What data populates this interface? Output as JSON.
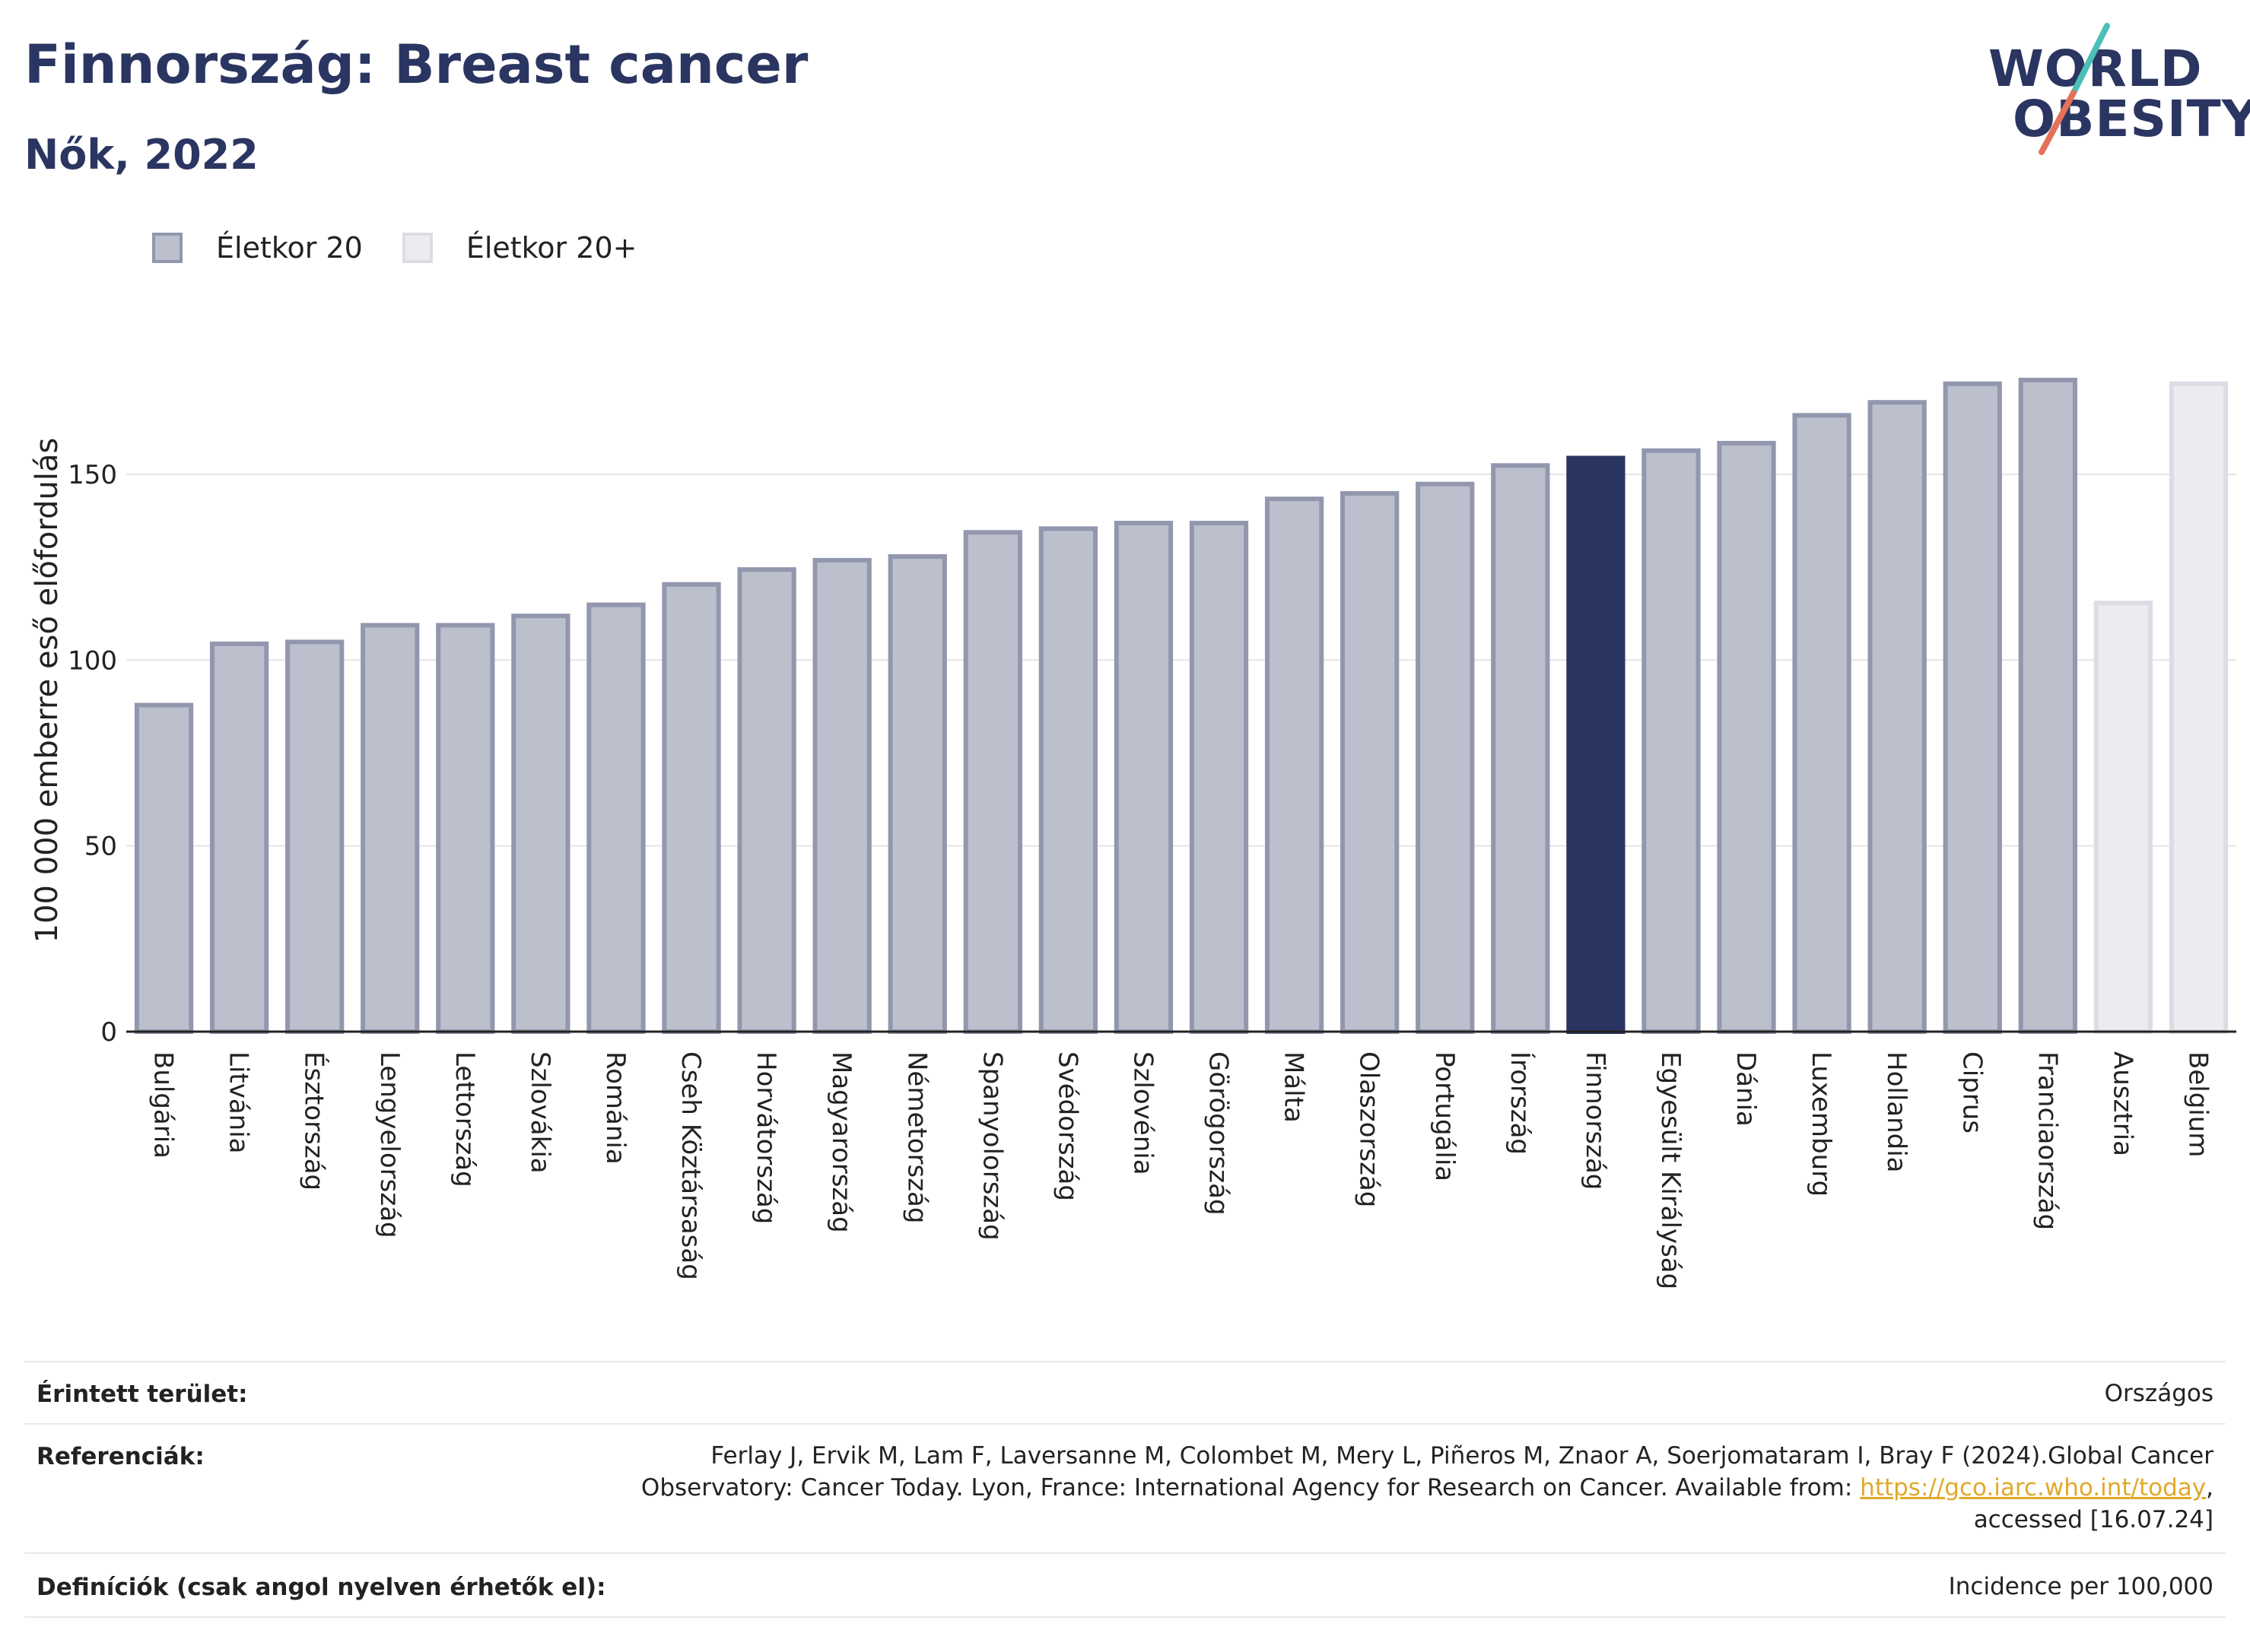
{
  "header": {
    "title": "Finnország: Breast cancer",
    "subtitle": "Nők, 2022"
  },
  "logo": {
    "line1": "WORLD",
    "line2": "OBESITY",
    "accent_colors": [
      "#4bbfb8",
      "#e4715a"
    ]
  },
  "legend": {
    "items": [
      {
        "label": "Életkor 20",
        "color": "#bcc0cc"
      },
      {
        "label": "Életkor 20+",
        "color": "#ececf0"
      }
    ]
  },
  "colors": {
    "bar_default": "#bcc0cc",
    "bar_default_border": "#9297ae",
    "bar_highlight": "#2b3561",
    "bar_alt": "#ececf0",
    "bar_alt_border": "#dcdde4",
    "grid": "#e5e5e5"
  },
  "chart_data": {
    "type": "bar",
    "title": "Finnország: Breast cancer",
    "subtitle": "Nők, 2022",
    "xlabel": "",
    "ylabel": "100 000 emberre eső előfordulás",
    "ylim": [
      0,
      185
    ],
    "yticks": [
      0,
      50,
      100,
      150
    ],
    "grid": true,
    "legend_position": "top-left",
    "highlight": "Finnország",
    "categories": [
      "Bulgária",
      "Litvánia",
      "Észtország",
      "Lengyelország",
      "Lettország",
      "Szlovákia",
      "Románia",
      "Cseh Köztársaság",
      "Horvátország",
      "Magyarország",
      "Németország",
      "Spanyolország",
      "Svédország",
      "Szlovénia",
      "Görögország",
      "Málta",
      "Olaszország",
      "Portugália",
      "Írország",
      "Finnország",
      "Egyesült Királyság",
      "Dánia",
      "Luxemburg",
      "Hollandia",
      "Ciprus",
      "Franciaország",
      "Ausztria",
      "Belgium"
    ],
    "values": [
      88.5,
      105,
      105.5,
      110,
      110,
      112.5,
      115.5,
      121,
      125,
      127.5,
      128.5,
      135,
      136,
      137.5,
      137.5,
      144,
      145.5,
      148,
      153,
      155,
      157,
      159,
      166.5,
      170,
      175,
      176,
      116,
      175
    ],
    "series_group": [
      "Életkor 20",
      "Életkor 20",
      "Életkor 20",
      "Életkor 20",
      "Életkor 20",
      "Életkor 20",
      "Életkor 20",
      "Életkor 20",
      "Életkor 20",
      "Életkor 20",
      "Életkor 20",
      "Életkor 20",
      "Életkor 20",
      "Életkor 20",
      "Életkor 20",
      "Életkor 20",
      "Életkor 20",
      "Életkor 20",
      "Életkor 20",
      "Életkor 20",
      "Életkor 20",
      "Életkor 20",
      "Életkor 20",
      "Életkor 20",
      "Életkor 20",
      "Életkor 20",
      "Életkor 20+",
      "Életkor 20+"
    ]
  },
  "info": {
    "area_label": "Érintett terület:",
    "area_value": "Országos",
    "refs_label": "Referenciák:",
    "refs_line1": "Ferlay J, Ervik M, Lam F, Laversanne M, Colombet M, Mery L, Piñeros M, Znaor A, Soerjomataram I, Bray F (2024).Global Cancer",
    "refs_line2_pre": "Observatory: Cancer Today. Lyon, France: International Agency for Research on Cancer. Available from: ",
    "refs_link": "https://gco.iarc.who.int/today",
    "refs_line2_post": ",",
    "refs_line3": "accessed [16.07.24]",
    "defs_label": "Definíciók (csak angol nyelven érhetők el):",
    "defs_value": "Incidence per 100,000"
  }
}
